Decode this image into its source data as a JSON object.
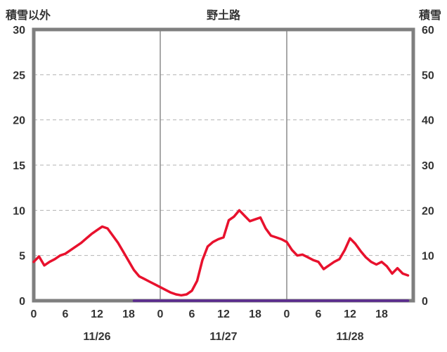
{
  "header": {
    "left_axis_label": "積雪以外",
    "title": "野土路",
    "right_axis_label": "積雪"
  },
  "chart_data": {
    "type": "line",
    "title": "野土路",
    "left_axis": {
      "label": "積雪以外",
      "min": 0,
      "max": 30,
      "ticks": [
        0,
        5,
        10,
        15,
        20,
        25,
        30
      ]
    },
    "right_axis": {
      "label": "積雪",
      "min": 0,
      "max": 60,
      "ticks": [
        0,
        10,
        20,
        30,
        40,
        50,
        60
      ]
    },
    "days": [
      "11/26",
      "11/27",
      "11/28"
    ],
    "x_tick_hours": [
      0,
      6,
      12,
      18
    ],
    "day_boundaries_hours": [
      24,
      48
    ],
    "grid": {
      "horizontal_dashed": true,
      "vertical_day_lines": true,
      "legend": "none"
    },
    "colors": {
      "non_snow_line": "#e8112d",
      "snow_line": "#5b2b8f",
      "frame": "#7f7f7f",
      "grid_dash": "#b3b3b3",
      "day_line": "#8c8c8c",
      "text": "#333333"
    },
    "series": [
      {
        "name": "積雪以外",
        "axis": "left",
        "values": [
          4.3,
          4.9,
          3.9,
          4.3,
          4.6,
          5.0,
          5.2,
          5.6,
          6.0,
          6.4,
          6.9,
          7.4,
          7.8,
          8.2,
          8.0,
          7.2,
          6.4,
          5.4,
          4.4,
          3.4,
          2.7,
          2.4,
          2.1,
          1.8,
          1.5,
          1.2,
          0.9,
          0.7,
          0.6,
          0.7,
          1.1,
          2.2,
          4.5,
          6.0,
          6.5,
          6.8,
          7.0,
          8.9,
          9.3,
          10.0,
          9.4,
          8.8,
          9.0,
          9.2,
          8.0,
          7.2,
          7.0,
          6.8,
          6.5,
          5.6,
          5.0,
          5.1,
          4.8,
          4.5,
          4.3,
          3.5,
          3.9,
          4.3,
          4.6,
          5.6,
          6.9,
          6.3,
          5.5,
          4.8,
          4.3,
          4.0,
          4.3,
          3.8,
          3.0,
          3.6,
          3.0,
          2.8
        ]
      },
      {
        "name": "積雪",
        "axis": "right",
        "constant_value": 0,
        "start_hour": 19,
        "end_hour": 71
      }
    ]
  }
}
